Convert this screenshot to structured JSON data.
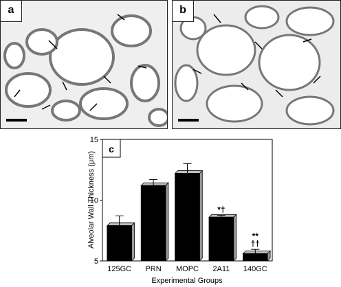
{
  "panels": [
    {
      "label": "a"
    },
    {
      "label": "b"
    }
  ],
  "chart_data": {
    "type": "bar",
    "panel_label": "c",
    "categories": [
      "125GC",
      "PRN",
      "MOPC",
      "2A11",
      "140GC"
    ],
    "values": [
      7.9,
      11.2,
      12.2,
      8.6,
      5.6
    ],
    "errors": [
      0.8,
      0.5,
      0.8,
      0.15,
      0.35
    ],
    "annotations": [
      "",
      "",
      "",
      "*†",
      "**\n††"
    ],
    "xlabel": "Experimental Groups",
    "ylabel": "Alveolar Wall Thickness (μm)",
    "ylim": [
      5,
      15
    ],
    "yticks": [
      5,
      10,
      15
    ],
    "bar_color": "#000000",
    "grid": false
  }
}
